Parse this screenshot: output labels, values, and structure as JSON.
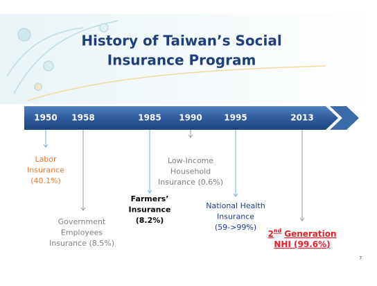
{
  "header": {
    "title_lines": [
      "History of Taiwan’s  Social",
      "Insurance Program"
    ]
  },
  "timeline": {
    "events": [
      {
        "year": "1950",
        "label_lines": [
          "Labor",
          "Insurance",
          "(40.1%)"
        ]
      },
      {
        "year": "1958",
        "label_lines": [
          "Government",
          "Employees",
          "Insurance (8.5%)"
        ]
      },
      {
        "year": "1985",
        "label_lines": [
          "Farmers’",
          "Insurance",
          "(8.2%)"
        ]
      },
      {
        "year": "1990",
        "label_lines": [
          "Low-Income",
          "Household",
          "Insurance (0.6%)"
        ]
      },
      {
        "year": "1995",
        "label_lines": [
          "National Health",
          "Insurance",
          "(59->99%)"
        ]
      },
      {
        "year": "2013",
        "ordinal": "2",
        "ordinal_suffix": "nd",
        "label_lines": [
          "Generation",
          "NHI (99.6%)"
        ]
      }
    ]
  },
  "footer": {
    "page_number": "7"
  }
}
